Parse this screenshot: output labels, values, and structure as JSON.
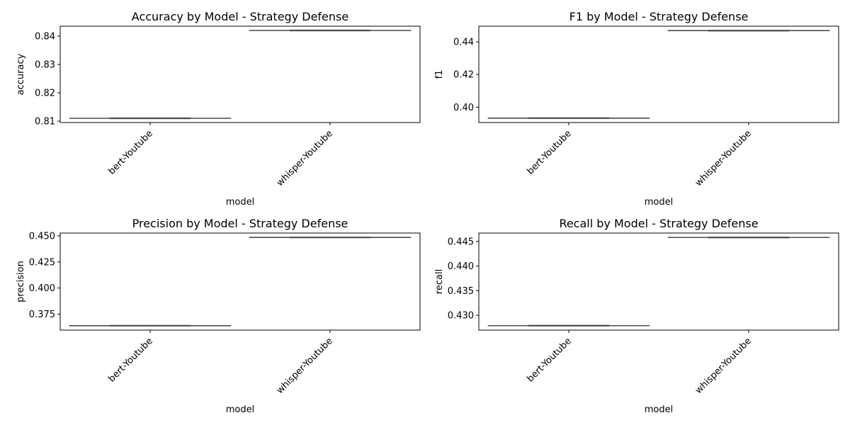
{
  "chart_data": [
    {
      "type": "boxplot",
      "title": "Accuracy by Model - Strategy Defense",
      "xlabel": "model",
      "ylabel": "accuracy",
      "categories": [
        "bert-Youtube",
        "whisper-Youtube"
      ],
      "values": [
        0.811,
        0.842
      ],
      "ylim": [
        0.8095,
        0.8435
      ],
      "yticks": [
        0.81,
        0.82,
        0.83,
        0.84
      ],
      "ytick_labels": [
        "0.81",
        "0.82",
        "0.83",
        "0.84"
      ],
      "box_color": "#4c4c4c",
      "grid": false
    },
    {
      "type": "boxplot",
      "title": "F1 by Model - Strategy Defense",
      "xlabel": "model",
      "ylabel": "f1",
      "categories": [
        "bert-Youtube",
        "whisper-Youtube"
      ],
      "values": [
        0.3933,
        0.4468
      ],
      "ylim": [
        0.3906,
        0.4495
      ],
      "yticks": [
        0.4,
        0.42,
        0.44
      ],
      "ytick_labels": [
        "0.40",
        "0.42",
        "0.44"
      ],
      "box_color": "#4c4c4c",
      "grid": false
    },
    {
      "type": "boxplot",
      "title": "Precision by Model - Strategy Defense",
      "xlabel": "model",
      "ylabel": "precision",
      "categories": [
        "bert-Youtube",
        "whisper-Youtube"
      ],
      "values": [
        0.3639,
        0.4485
      ],
      "ylim": [
        0.3597,
        0.4527
      ],
      "yticks": [
        0.375,
        0.4,
        0.425,
        0.45
      ],
      "ytick_labels": [
        "0.375",
        "0.400",
        "0.425",
        "0.450"
      ],
      "box_color": "#4c4c4c",
      "grid": false
    },
    {
      "type": "boxplot",
      "title": "Recall by Model - Strategy Defense",
      "xlabel": "model",
      "ylabel": "recall",
      "categories": [
        "bert-Youtube",
        "whisper-Youtube"
      ],
      "values": [
        0.4279,
        0.4458
      ],
      "ylim": [
        0.427,
        0.4467
      ],
      "yticks": [
        0.43,
        0.435,
        0.44,
        0.445
      ],
      "ytick_labels": [
        "0.430",
        "0.435",
        "0.440",
        "0.445"
      ],
      "box_color": "#4c4c4c",
      "grid": false
    }
  ]
}
